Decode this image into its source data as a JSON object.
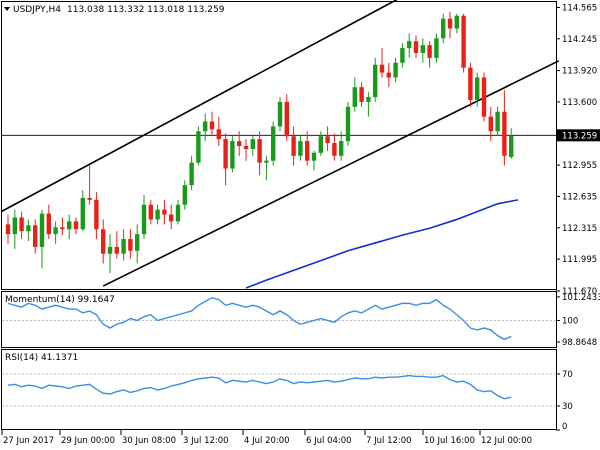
{
  "chart_data": [
    {
      "type": "candlestick",
      "title": "USDJPY,H4",
      "ohlc_header": "113.038 113.332 113.018 113.259",
      "current_price": 113.259,
      "current_price_label": "113.259",
      "ylim": [
        111.7,
        114.6
      ],
      "y_ticks": [
        "114.565",
        "114.245",
        "113.920",
        "113.600",
        "113.259",
        "112.955",
        "112.635",
        "112.315",
        "111.995",
        "111.670"
      ],
      "x_ticks": [
        "27 Jun 2017",
        "29 Jun 00:00",
        "30 Jun 08:00",
        "3 Jul 12:00",
        "4 Jul 20:00",
        "6 Jul 04:00",
        "7 Jul 12:00",
        "10 Jul 16:00",
        "12 Jul 00:00"
      ],
      "colors": {
        "bull": "#1a9a1a",
        "bear": "#e8201a",
        "ma": "#1030d0",
        "channel": "#000000"
      },
      "candles": [
        [
          112.35,
          112.45,
          112.15,
          112.25
        ],
        [
          112.25,
          112.5,
          112.1,
          112.42
        ],
        [
          112.42,
          112.48,
          112.2,
          112.28
        ],
        [
          112.28,
          112.4,
          112.18,
          112.34
        ],
        [
          112.34,
          112.4,
          112.05,
          112.12
        ],
        [
          112.12,
          112.5,
          111.9,
          112.46
        ],
        [
          112.46,
          112.55,
          112.2,
          112.25
        ],
        [
          112.25,
          112.38,
          112.15,
          112.32
        ],
        [
          112.32,
          112.42,
          112.24,
          112.3
        ],
        [
          112.3,
          112.45,
          112.2,
          112.38
        ],
        [
          112.38,
          112.42,
          112.25,
          112.3
        ],
        [
          112.3,
          112.7,
          112.28,
          112.62
        ],
        [
          112.62,
          112.95,
          112.55,
          112.6
        ],
        [
          112.6,
          112.68,
          112.2,
          112.3
        ],
        [
          112.3,
          112.4,
          111.95,
          112.05
        ],
        [
          112.05,
          112.25,
          111.85,
          112.12
        ],
        [
          112.12,
          112.28,
          112.0,
          112.05
        ],
        [
          112.05,
          112.3,
          111.98,
          112.2
        ],
        [
          112.2,
          112.3,
          112.0,
          112.08
        ],
        [
          112.08,
          112.35,
          111.95,
          112.25
        ],
        [
          112.25,
          112.65,
          112.2,
          112.55
        ],
        [
          112.55,
          112.6,
          112.35,
          112.4
        ],
        [
          112.4,
          112.55,
          112.35,
          112.5
        ],
        [
          112.5,
          112.6,
          112.35,
          112.45
        ],
        [
          112.45,
          112.55,
          112.3,
          112.38
        ],
        [
          112.38,
          112.6,
          112.35,
          112.55
        ],
        [
          112.55,
          112.8,
          112.5,
          112.75
        ],
        [
          112.75,
          113.05,
          112.7,
          112.98
        ],
        [
          112.98,
          113.35,
          112.95,
          113.3
        ],
        [
          113.3,
          113.48,
          113.2,
          113.4
        ],
        [
          113.4,
          113.5,
          113.25,
          113.32
        ],
        [
          113.32,
          113.45,
          113.15,
          113.22
        ],
        [
          113.22,
          113.28,
          112.75,
          112.92
        ],
        [
          112.92,
          113.25,
          112.88,
          113.2
        ],
        [
          113.2,
          113.3,
          113.05,
          113.15
        ],
        [
          113.15,
          113.22,
          113.0,
          113.12
        ],
        [
          113.12,
          113.25,
          113.05,
          113.22
        ],
        [
          113.22,
          113.3,
          112.85,
          112.98
        ],
        [
          112.98,
          113.05,
          112.8,
          113.0
        ],
        [
          113.0,
          113.4,
          112.95,
          113.35
        ],
        [
          113.35,
          113.65,
          113.3,
          113.6
        ],
        [
          113.6,
          113.68,
          113.2,
          113.25
        ],
        [
          113.25,
          113.35,
          112.95,
          113.05
        ],
        [
          113.05,
          113.25,
          113.0,
          113.2
        ],
        [
          113.2,
          113.3,
          112.95,
          113.0
        ],
        [
          113.0,
          113.1,
          112.9,
          113.08
        ],
        [
          113.08,
          113.3,
          113.05,
          113.25
        ],
        [
          113.25,
          113.35,
          113.1,
          113.18
        ],
        [
          113.18,
          113.28,
          113.0,
          113.05
        ],
        [
          113.05,
          113.3,
          113.0,
          113.2
        ],
        [
          113.2,
          113.6,
          113.15,
          113.55
        ],
        [
          113.55,
          113.85,
          113.5,
          113.75
        ],
        [
          113.75,
          113.8,
          113.55,
          113.6
        ],
        [
          113.6,
          113.7,
          113.45,
          113.65
        ],
        [
          113.65,
          114.05,
          113.6,
          113.98
        ],
        [
          113.98,
          114.15,
          113.85,
          113.9
        ],
        [
          113.9,
          114.0,
          113.75,
          113.85
        ],
        [
          113.85,
          114.05,
          113.8,
          114.0
        ],
        [
          114.0,
          114.2,
          113.95,
          114.15
        ],
        [
          114.15,
          114.3,
          114.05,
          114.22
        ],
        [
          114.22,
          114.28,
          114.05,
          114.1
        ],
        [
          114.1,
          114.25,
          114.0,
          114.18
        ],
        [
          114.18,
          114.22,
          113.95,
          114.05
        ],
        [
          114.05,
          114.3,
          114.0,
          114.25
        ],
        [
          114.25,
          114.5,
          114.2,
          114.45
        ],
        [
          114.45,
          114.52,
          114.25,
          114.35
        ],
        [
          114.35,
          114.5,
          114.3,
          114.48
        ],
        [
          114.48,
          114.5,
          113.9,
          113.95
        ],
        [
          113.95,
          114.0,
          113.55,
          113.62
        ],
        [
          113.62,
          113.9,
          113.55,
          113.85
        ],
        [
          113.85,
          113.9,
          113.4,
          113.45
        ],
        [
          113.45,
          113.55,
          113.2,
          113.3
        ],
        [
          113.3,
          113.55,
          113.25,
          113.5
        ],
        [
          113.5,
          113.72,
          112.95,
          113.05
        ],
        [
          113.038,
          113.332,
          113.018,
          113.259
        ]
      ],
      "ma": [
        [
          35,
          111.7
        ],
        [
          38,
          111.78
        ],
        [
          42,
          111.88
        ],
        [
          46,
          111.98
        ],
        [
          50,
          112.08
        ],
        [
          54,
          112.16
        ],
        [
          58,
          112.24
        ],
        [
          62,
          112.31
        ],
        [
          66,
          112.4
        ],
        [
          69,
          112.48
        ],
        [
          72,
          112.56
        ],
        [
          75,
          112.6
        ]
      ]
    },
    {
      "type": "line",
      "title": "Momentum(14) 99.1647",
      "ylim": [
        98.6,
        101.5
      ],
      "y_ticks": [
        "101.2433",
        "100",
        "98.8648"
      ],
      "reference_level": 100,
      "color": "#3a8ee6",
      "values": [
        100.9,
        100.8,
        100.7,
        100.9,
        100.8,
        100.6,
        100.7,
        100.8,
        100.7,
        100.6,
        100.6,
        100.4,
        100.5,
        100.3,
        99.8,
        99.6,
        99.8,
        99.9,
        100.1,
        100.0,
        100.2,
        100.3,
        100.0,
        100.1,
        100.2,
        100.3,
        100.4,
        100.5,
        100.8,
        101.0,
        101.2,
        101.1,
        100.8,
        100.9,
        100.8,
        100.7,
        100.8,
        100.7,
        100.5,
        100.3,
        100.5,
        100.3,
        100.0,
        99.8,
        99.9,
        100.0,
        100.1,
        100.0,
        99.9,
        100.2,
        100.4,
        100.5,
        100.4,
        100.6,
        100.8,
        100.6,
        100.7,
        100.8,
        100.9,
        100.9,
        100.8,
        100.9,
        100.9,
        101.1,
        100.8,
        100.6,
        100.3,
        100.0,
        99.6,
        99.5,
        99.6,
        99.5,
        99.2,
        99.0,
        99.16
      ]
    },
    {
      "type": "line",
      "title": "RSI(14) 41.1371",
      "ylim": [
        0,
        100
      ],
      "y_ticks": [
        "70",
        "30",
        "0"
      ],
      "reference_levels": [
        70,
        30
      ],
      "color": "#3a8ee6",
      "values": [
        56,
        57,
        54,
        56,
        55,
        52,
        56,
        55,
        54,
        52,
        55,
        56,
        57,
        51,
        46,
        45,
        48,
        50,
        47,
        49,
        52,
        53,
        50,
        52,
        55,
        57,
        59,
        62,
        64,
        65,
        66,
        65,
        59,
        62,
        61,
        60,
        62,
        60,
        58,
        60,
        64,
        62,
        58,
        60,
        59,
        60,
        61,
        62,
        60,
        61,
        63,
        65,
        64,
        64,
        66,
        65,
        66,
        66,
        67,
        68,
        67,
        67,
        66,
        66,
        68,
        63,
        60,
        61,
        57,
        50,
        48,
        49,
        43,
        39,
        41
      ]
    }
  ]
}
